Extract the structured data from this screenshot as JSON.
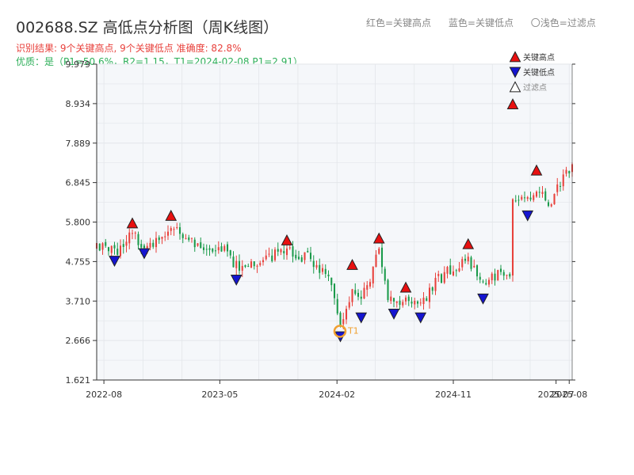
{
  "title": "002688.SZ 高低点分析图（周K线图）",
  "header_legend": {
    "red": "红色=关键高点",
    "blue": "蓝色=关键低点",
    "gray": "〇浅色=过滤点"
  },
  "subtitle1": "识别结果: 9个关键高点, 9个关键低点  准确度: 82.8%",
  "subtitle2": "优质：是（P1=50.6%，R2=1.15，T1=2024-02-08 P1=2.91）",
  "colors": {
    "up": "#e8413c",
    "down": "#1a9a4a",
    "high_marker": "#e81010",
    "low_marker": "#1515d0",
    "t1_ring": "#f0a030",
    "plot_bg": "#f5f7fa",
    "grid": "#e3e6ea"
  },
  "chart_data": {
    "type": "candlestick",
    "title": "002688.SZ 高低点分析图（周K线图）",
    "y_ticks": [
      "9.979",
      "8.934",
      "7.889",
      "6.845",
      "5.800",
      "4.755",
      "3.710",
      "2.666",
      "1.621"
    ],
    "ylim": [
      1.621,
      9.979
    ],
    "x_ticks": [
      "2022-08",
      "2023-05",
      "2024-02",
      "2024-11",
      "2025-07",
      "2025-08"
    ],
    "xlim": [
      "2022-07-15",
      "2025-08-08"
    ],
    "grid": true,
    "legend": {
      "position": "top-right",
      "entries": [
        "关键高点",
        "关键低点",
        "过滤点"
      ]
    },
    "key_highs": [
      {
        "date": "2022-10-07",
        "value": 5.6
      },
      {
        "date": "2023-01-06",
        "value": 5.8
      },
      {
        "date": "2023-10-06",
        "value": 5.15
      },
      {
        "date": "2024-03-08",
        "value": 4.5
      },
      {
        "date": "2024-05-10",
        "value": 5.2
      },
      {
        "date": "2024-07-12",
        "value": 3.9
      },
      {
        "date": "2024-12-06",
        "value": 5.05
      },
      {
        "date": "2025-03-21",
        "value": 8.75
      },
      {
        "date": "2025-05-16",
        "value": 7.0
      }
    ],
    "key_lows": [
      {
        "date": "2022-08-26",
        "value": 4.9
      },
      {
        "date": "2022-11-04",
        "value": 5.1
      },
      {
        "date": "2023-06-09",
        "value": 4.4
      },
      {
        "date": "2024-02-09",
        "value": 2.9
      },
      {
        "date": "2024-03-29",
        "value": 3.4
      },
      {
        "date": "2024-06-14",
        "value": 3.5
      },
      {
        "date": "2024-08-16",
        "value": 3.4
      },
      {
        "date": "2025-01-10",
        "value": 3.9
      },
      {
        "date": "2025-04-25",
        "value": 6.1
      }
    ],
    "t1": {
      "label": "T1",
      "date": "2024-02-08",
      "value": 2.91
    },
    "anchors": [
      [
        "2022-07-15",
        5.1
      ],
      [
        "2022-08-26",
        5.0
      ],
      [
        "2022-10-07",
        5.5
      ],
      [
        "2022-11-04",
        5.2
      ],
      [
        "2022-12-09",
        5.3
      ],
      [
        "2023-01-06",
        5.6
      ],
      [
        "2023-03-03",
        5.3
      ],
      [
        "2023-05-05",
        5.1
      ],
      [
        "2023-06-09",
        4.6
      ],
      [
        "2023-08-04",
        4.8
      ],
      [
        "2023-10-06",
        5.05
      ],
      [
        "2023-12-01",
        4.8
      ],
      [
        "2024-01-12",
        4.3
      ],
      [
        "2024-02-09",
        3.2
      ],
      [
        "2024-03-08",
        4.0
      ],
      [
        "2024-03-29",
        3.7
      ],
      [
        "2024-05-10",
        5.0
      ],
      [
        "2024-05-31",
        3.7
      ],
      [
        "2024-06-14",
        3.65
      ],
      [
        "2024-07-12",
        3.8
      ],
      [
        "2024-08-16",
        3.6
      ],
      [
        "2024-09-20",
        4.2
      ],
      [
        "2024-10-25",
        4.5
      ],
      [
        "2024-12-06",
        4.8
      ],
      [
        "2025-01-10",
        4.3
      ],
      [
        "2025-02-21",
        4.4
      ],
      [
        "2025-03-14",
        4.5
      ],
      [
        "2025-03-21",
        6.5
      ],
      [
        "2025-04-25",
        6.3
      ],
      [
        "2025-05-16",
        6.7
      ],
      [
        "2025-06-13",
        6.3
      ],
      [
        "2025-07-11",
        6.8
      ],
      [
        "2025-08-08",
        7.3
      ]
    ]
  }
}
